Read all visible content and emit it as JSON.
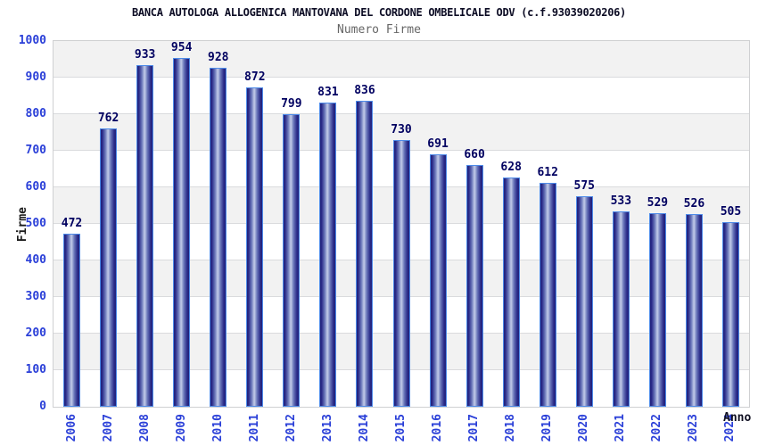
{
  "chart_data": {
    "type": "bar",
    "title": "BANCA AUTOLOGA ALLOGENICA MANTOVANA DEL CORDONE OMBELICALE ODV (c.f.93039020206)",
    "subtitle": "Numero Firme",
    "xlabel": "Anno",
    "ylabel": "Firme",
    "categories": [
      "2006",
      "2007",
      "2008",
      "2009",
      "2010",
      "2011",
      "2012",
      "2013",
      "2014",
      "2015",
      "2016",
      "2017",
      "2018",
      "2019",
      "2020",
      "2021",
      "2022",
      "2023",
      "2024"
    ],
    "values": [
      472,
      762,
      933,
      954,
      928,
      872,
      799,
      831,
      836,
      730,
      691,
      660,
      628,
      612,
      575,
      533,
      529,
      526,
      505
    ],
    "ylim": [
      0,
      1000
    ],
    "ytick_step": 100,
    "legend": "none",
    "grid": "horizontal alternating bands",
    "colors": {
      "bar_border": "#4d8ae8",
      "bar_edge_dark": "#21217a",
      "bar_mid": "#6a77ba",
      "bar_center_light": "#c3cce9",
      "tick_label": "#2a3fd8",
      "value_label": "#000060",
      "title_color": "#0c0c24",
      "subtitle_color": "#666666",
      "band_gray": "#f2f2f2",
      "band_white": "#ffffff",
      "gridline": "#dadbdd"
    }
  }
}
